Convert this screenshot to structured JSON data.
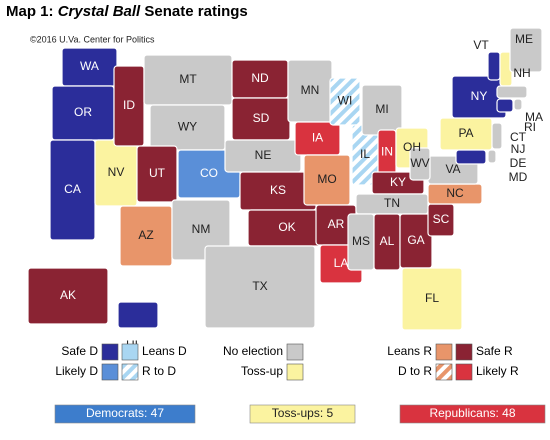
{
  "header": {
    "title": {
      "prefix": "Map 1:",
      "italic": "Crystal Ball",
      "suffix": "Senate ratings"
    },
    "copyright": "©2016 U.Va. Center for Politics"
  },
  "map": {
    "ratings": [
      {
        "label": "Safe D",
        "color": "#2b2d9a"
      },
      {
        "label": "Likely D",
        "color": "#5a8fd8"
      },
      {
        "label": "Leans D",
        "color": "#a9d6f2"
      },
      {
        "label": "R to D",
        "color": "#a9d6f2",
        "stripe": "#ffffff"
      },
      {
        "label": "No election",
        "color": "#c9c9c9"
      },
      {
        "label": "Toss-up",
        "color": "#fbf3a0"
      },
      {
        "label": "Leans R",
        "color": "#e8956a"
      },
      {
        "label": "D to R",
        "color": "#e8956a",
        "stripe": "#ffffff"
      },
      {
        "label": "Safe R",
        "color": "#8a2333"
      },
      {
        "label": "Likely R",
        "color": "#d9333f"
      }
    ],
    "states": [
      {
        "abbr": "WA",
        "rating": "Safe D"
      },
      {
        "abbr": "OR",
        "rating": "Safe D"
      },
      {
        "abbr": "CA",
        "rating": "Safe D"
      },
      {
        "abbr": "NV",
        "rating": "Toss-up"
      },
      {
        "abbr": "ID",
        "rating": "Safe R"
      },
      {
        "abbr": "MT",
        "rating": "No election"
      },
      {
        "abbr": "WY",
        "rating": "No election"
      },
      {
        "abbr": "UT",
        "rating": "Safe R"
      },
      {
        "abbr": "CO",
        "rating": "Likely D"
      },
      {
        "abbr": "AZ",
        "rating": "Leans R"
      },
      {
        "abbr": "NM",
        "rating": "No election"
      },
      {
        "abbr": "ND",
        "rating": "Safe R"
      },
      {
        "abbr": "SD",
        "rating": "Safe R"
      },
      {
        "abbr": "NE",
        "rating": "No election"
      },
      {
        "abbr": "KS",
        "rating": "Safe R"
      },
      {
        "abbr": "OK",
        "rating": "Safe R"
      },
      {
        "abbr": "TX",
        "rating": "No election"
      },
      {
        "abbr": "MN",
        "rating": "No election"
      },
      {
        "abbr": "IA",
        "rating": "Likely R"
      },
      {
        "abbr": "MO",
        "rating": "Leans R"
      },
      {
        "abbr": "AR",
        "rating": "Safe R"
      },
      {
        "abbr": "LA",
        "rating": "Likely R"
      },
      {
        "abbr": "WI",
        "rating": "R to D"
      },
      {
        "abbr": "IL",
        "rating": "R to D"
      },
      {
        "abbr": "MI",
        "rating": "No election"
      },
      {
        "abbr": "IN",
        "rating": "Likely R"
      },
      {
        "abbr": "OH",
        "rating": "Toss-up"
      },
      {
        "abbr": "KY",
        "rating": "Safe R"
      },
      {
        "abbr": "TN",
        "rating": "No election"
      },
      {
        "abbr": "MS",
        "rating": "No election"
      },
      {
        "abbr": "AL",
        "rating": "Safe R"
      },
      {
        "abbr": "GA",
        "rating": "Safe R"
      },
      {
        "abbr": "FL",
        "rating": "Toss-up"
      },
      {
        "abbr": "SC",
        "rating": "Safe R"
      },
      {
        "abbr": "NC",
        "rating": "Leans R"
      },
      {
        "abbr": "VA",
        "rating": "No election"
      },
      {
        "abbr": "WV",
        "rating": "No election"
      },
      {
        "abbr": "PA",
        "rating": "Toss-up"
      },
      {
        "abbr": "NY",
        "rating": "Safe D"
      },
      {
        "abbr": "VT",
        "rating": "Safe D"
      },
      {
        "abbr": "NH",
        "rating": "Toss-up"
      },
      {
        "abbr": "ME",
        "rating": "No election"
      },
      {
        "abbr": "MA",
        "rating": "No election"
      },
      {
        "abbr": "RI",
        "rating": "No election"
      },
      {
        "abbr": "CT",
        "rating": "Safe D"
      },
      {
        "abbr": "NJ",
        "rating": "No election"
      },
      {
        "abbr": "DE",
        "rating": "No election"
      },
      {
        "abbr": "MD",
        "rating": "Safe D"
      },
      {
        "abbr": "AK",
        "rating": "Safe R"
      },
      {
        "abbr": "HI",
        "rating": "Safe D"
      }
    ]
  },
  "totals": [
    {
      "label": "Democrats:",
      "value": 47,
      "color": "#3d7dcc"
    },
    {
      "label": "Toss-ups:",
      "value": 5,
      "color": "#fbf3a0"
    },
    {
      "label": "Republicans:",
      "value": 48,
      "color": "#d9333f"
    }
  ]
}
